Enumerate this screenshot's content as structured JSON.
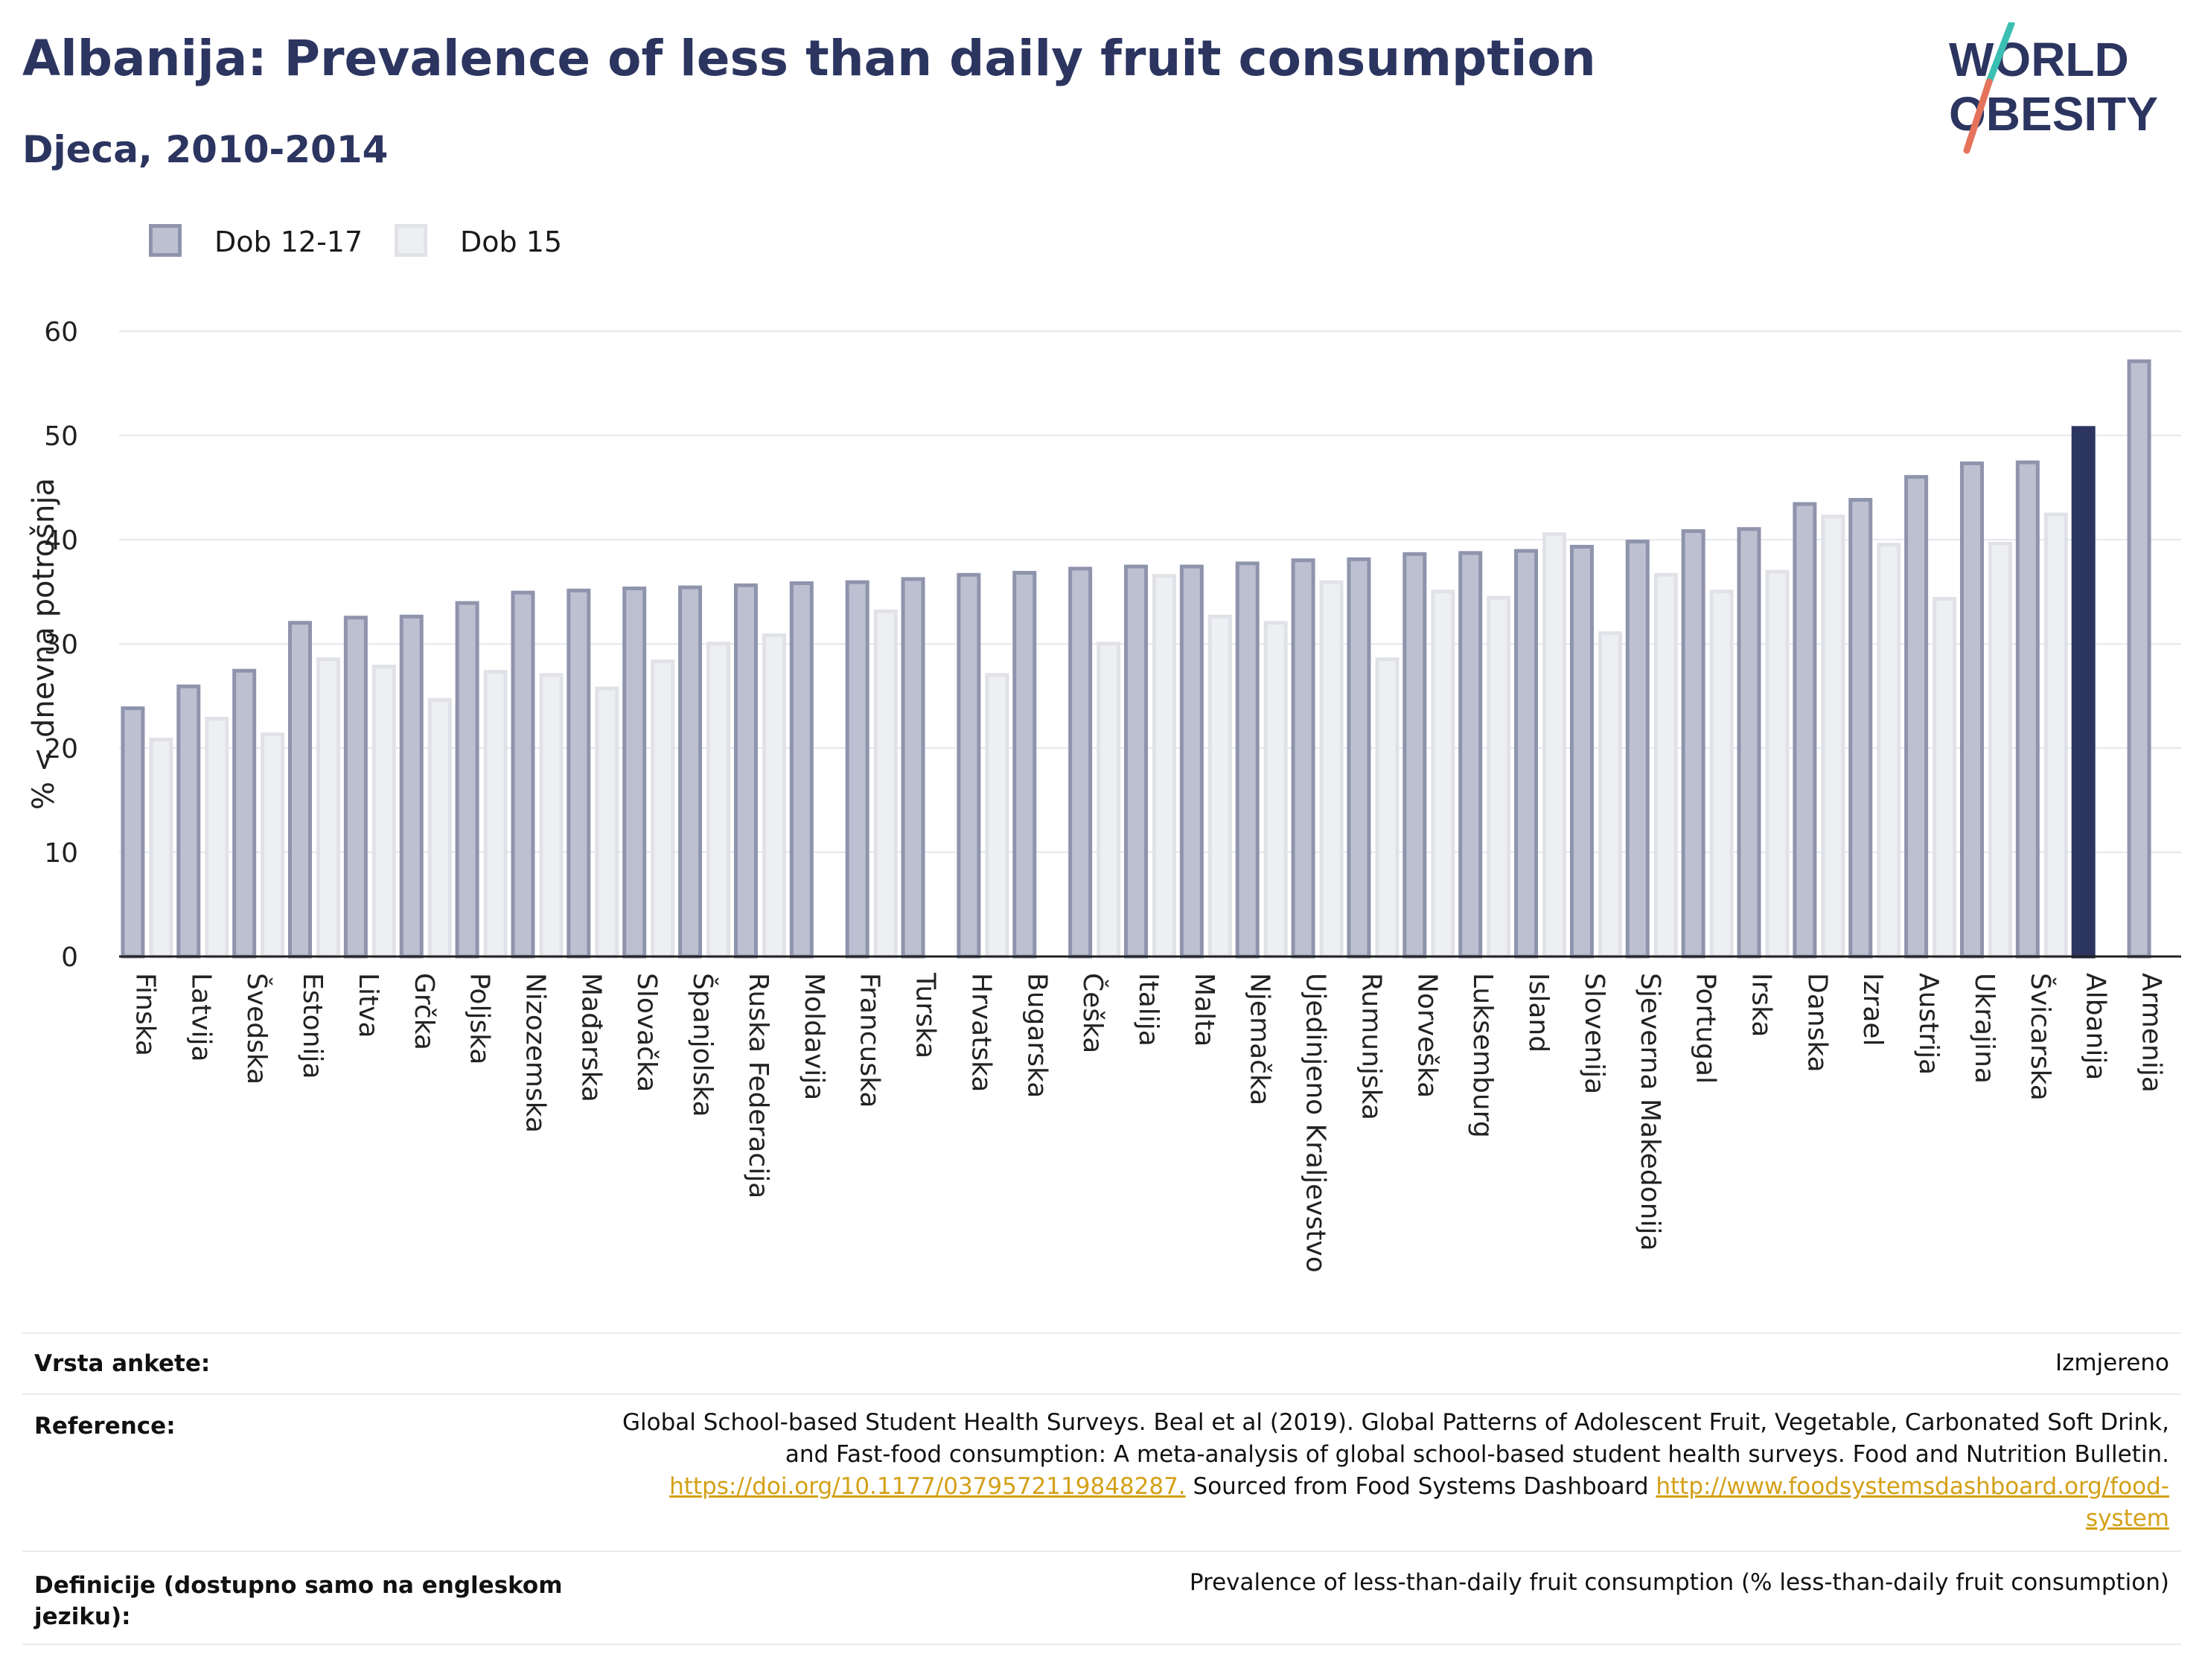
{
  "title": "Albanija: Prevalence of less than daily fruit consumption",
  "subtitle": "Djeca, 2010-2014",
  "logo": {
    "line1": "WORLD",
    "line2": "OBESITY"
  },
  "legend": [
    {
      "label": "Dob 12-17",
      "color": "#bdc0d0",
      "border": "#8f94ad"
    },
    {
      "label": "Dob 15",
      "color": "#eeeff3",
      "border": "#e1e2e8"
    }
  ],
  "colors": {
    "highlight": "#2c3560",
    "axis": "#222222",
    "grid": "#e6e8ef"
  },
  "chart_data": {
    "type": "bar",
    "ylabel": "% < dnevna potrošnja",
    "ylim": [
      0,
      60
    ],
    "yticks": [
      0,
      10,
      20,
      30,
      40,
      50,
      60
    ],
    "grid": true,
    "legend_position": "top-left",
    "highlight": "Albanija",
    "categories": [
      "Finska",
      "Latvija",
      "Švedska",
      "Estonija",
      "Litva",
      "Grčka",
      "Poljska",
      "Nizozemska",
      "Mađarska",
      "Slovačka",
      "Španjolska",
      "Ruska Federacija",
      "Moldavija",
      "Francuska",
      "Turska",
      "Hrvatska",
      "Bugarska",
      "Češka",
      "Italija",
      "Malta",
      "Njemačka",
      "Ujedinjeno Kraljevstvo",
      "Rumunjska",
      "Norveška",
      "Luksemburg",
      "Island",
      "Slovenija",
      "Sjeverna Makedonija",
      "Portugal",
      "Irska",
      "Danska",
      "Izrael",
      "Austrija",
      "Ukrajina",
      "Švicarska",
      "Albanija",
      "Armenija"
    ],
    "series": [
      {
        "name": "Dob 12-17",
        "values": [
          24.0,
          26.1,
          27.6,
          32.2,
          32.7,
          32.8,
          34.1,
          35.1,
          35.3,
          35.5,
          35.6,
          35.8,
          36.0,
          36.1,
          36.4,
          36.8,
          37.0,
          37.4,
          37.6,
          37.6,
          37.9,
          38.2,
          38.3,
          38.8,
          38.9,
          39.1,
          39.5,
          40.0,
          41.0,
          41.2,
          43.6,
          44.0,
          46.2,
          47.5,
          47.6,
          50.9,
          57.3
        ]
      },
      {
        "name": "Dob 15",
        "values": [
          21.0,
          23.0,
          21.5,
          28.7,
          28.0,
          24.8,
          27.5,
          27.2,
          25.9,
          28.5,
          30.2,
          31.0,
          null,
          33.3,
          null,
          27.2,
          null,
          30.2,
          36.7,
          32.8,
          32.2,
          36.1,
          28.7,
          35.2,
          34.6,
          40.7,
          31.2,
          36.8,
          35.2,
          37.1,
          42.4,
          39.7,
          34.5,
          39.8,
          42.6,
          null,
          null
        ]
      }
    ]
  },
  "info": {
    "survey_label": "Vrsta ankete:",
    "survey_value": "Izmjereno",
    "reference_label": "Reference:",
    "reference_line1": "Global School-based Student Health Surveys. Beal et al (2019). Global Patterns of Adolescent Fruit, Vegetable, Carbonated Soft Drink,",
    "reference_line2": "and Fast-food consumption: A meta-analysis of global school-based student health surveys. Food and Nutrition Bulletin.",
    "reference_link1": "https://doi.org/10.1177/0379572119848287.",
    "reference_mid": " Sourced from Food Systems Dashboard ",
    "reference_link2a": "http://www.foodsystemsdashboard.org/food-",
    "reference_link2b": "system",
    "definition_label_1": "Definicije (dostupno samo na engleskom",
    "definition_label_2": "jeziku):",
    "definition_value": "Prevalence of less-than-daily fruit consumption (% less-than-daily fruit consumption)"
  }
}
